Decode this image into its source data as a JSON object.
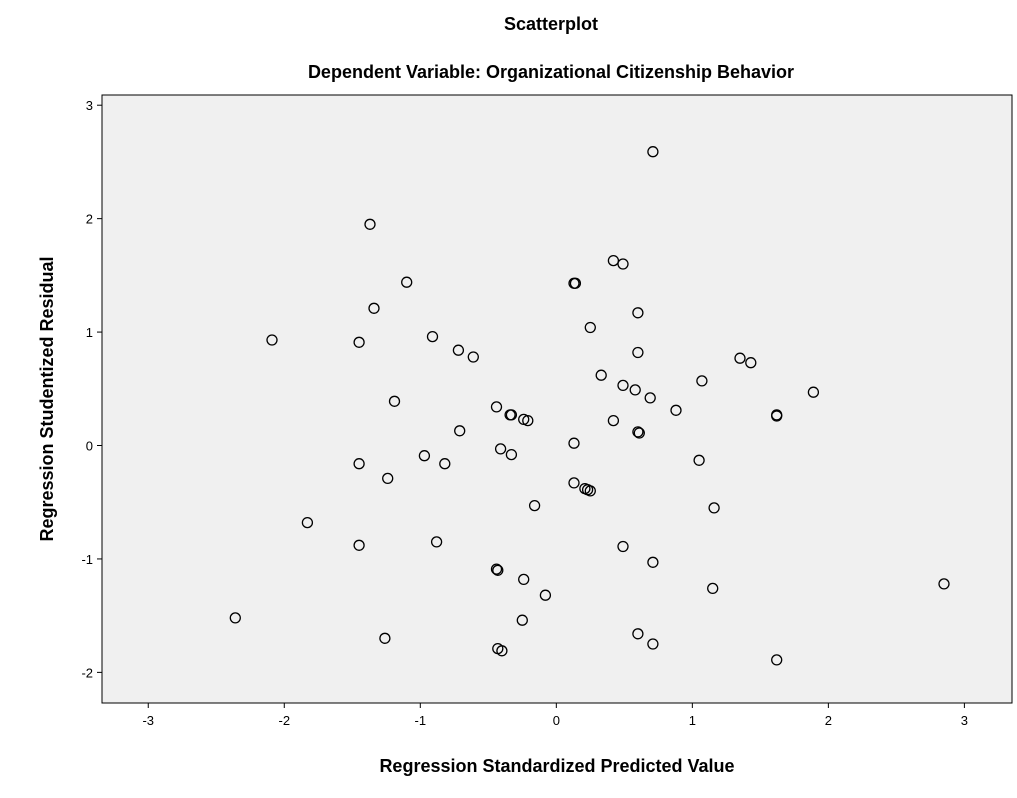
{
  "chart_data": {
    "type": "scatter",
    "title": "Scatterplot",
    "subtitle": "Dependent Variable: Organizational Citizenship Behavior",
    "xlabel": "Regression Standardized Predicted Value",
    "ylabel": "Regression Studentized Residual",
    "xlim": [
      -3.34,
      3.35
    ],
    "ylim": [
      -2.27,
      3.09
    ],
    "xticks": [
      -3,
      -2,
      -1,
      0,
      1,
      2,
      3
    ],
    "yticks": [
      -2,
      -1,
      0,
      1,
      2,
      3
    ],
    "grid": false,
    "colors": {
      "plot_background": "#f0f0f0",
      "marker_edge": "#000000"
    },
    "series": [
      {
        "points": [
          [
            0.71,
            2.59
          ],
          [
            -1.37,
            1.95
          ],
          [
            0.42,
            1.63
          ],
          [
            0.49,
            1.6
          ],
          [
            -1.1,
            1.44
          ],
          [
            0.13,
            1.43
          ],
          [
            0.14,
            1.43
          ],
          [
            -1.34,
            1.21
          ],
          [
            0.6,
            1.17
          ],
          [
            0.25,
            1.04
          ],
          [
            -2.09,
            0.93
          ],
          [
            -0.91,
            0.96
          ],
          [
            -1.45,
            0.91
          ],
          [
            -0.72,
            0.84
          ],
          [
            -0.61,
            0.78
          ],
          [
            0.6,
            0.82
          ],
          [
            1.35,
            0.77
          ],
          [
            1.43,
            0.73
          ],
          [
            0.33,
            0.62
          ],
          [
            1.07,
            0.57
          ],
          [
            0.49,
            0.53
          ],
          [
            0.58,
            0.49
          ],
          [
            0.69,
            0.42
          ],
          [
            1.89,
            0.47
          ],
          [
            -1.19,
            0.39
          ],
          [
            -0.44,
            0.34
          ],
          [
            0.88,
            0.31
          ],
          [
            -0.34,
            0.27
          ],
          [
            -0.33,
            0.27
          ],
          [
            -0.24,
            0.23
          ],
          [
            -0.21,
            0.22
          ],
          [
            0.42,
            0.22
          ],
          [
            1.62,
            0.26
          ],
          [
            1.62,
            0.27
          ],
          [
            0.6,
            0.12
          ],
          [
            0.61,
            0.11
          ],
          [
            -0.71,
            0.13
          ],
          [
            0.13,
            0.02
          ],
          [
            -0.41,
            -0.03
          ],
          [
            -0.33,
            -0.08
          ],
          [
            -0.97,
            -0.09
          ],
          [
            -1.45,
            -0.16
          ],
          [
            -0.82,
            -0.16
          ],
          [
            1.05,
            -0.13
          ],
          [
            -1.24,
            -0.29
          ],
          [
            0.13,
            -0.33
          ],
          [
            0.21,
            -0.38
          ],
          [
            0.23,
            -0.39
          ],
          [
            0.25,
            -0.4
          ],
          [
            -0.16,
            -0.53
          ],
          [
            1.16,
            -0.55
          ],
          [
            -1.83,
            -0.68
          ],
          [
            -0.88,
            -0.85
          ],
          [
            -1.45,
            -0.88
          ],
          [
            0.49,
            -0.89
          ],
          [
            0.71,
            -1.03
          ],
          [
            -0.44,
            -1.09
          ],
          [
            -0.43,
            -1.1
          ],
          [
            -0.24,
            -1.18
          ],
          [
            1.15,
            -1.26
          ],
          [
            2.85,
            -1.22
          ],
          [
            -0.08,
            -1.32
          ],
          [
            -2.36,
            -1.52
          ],
          [
            -0.25,
            -1.54
          ],
          [
            -1.26,
            -1.7
          ],
          [
            0.6,
            -1.66
          ],
          [
            0.71,
            -1.75
          ],
          [
            -0.43,
            -1.79
          ],
          [
            -0.4,
            -1.81
          ],
          [
            1.62,
            -1.89
          ]
        ]
      }
    ]
  }
}
